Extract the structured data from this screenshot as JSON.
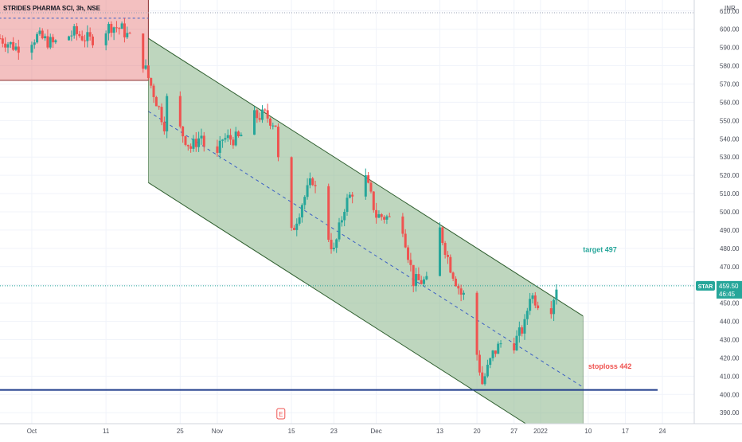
{
  "chart_data": {
    "type": "candlestick",
    "title": "STRIDES PHARMA SCI, 3h, NSE",
    "currency": "INR",
    "ylim": [
      384,
      616
    ],
    "y_ticks": [
      390,
      400,
      410,
      420,
      430,
      440,
      450,
      460,
      470,
      480,
      490,
      500,
      510,
      520,
      530,
      540,
      550,
      560,
      570,
      580,
      590,
      600,
      610
    ],
    "x_ticks": [
      {
        "label": "Oct",
        "x": "2021-09-27"
      },
      {
        "label": "11",
        "x": "2021-10-11"
      },
      {
        "label": "25",
        "x": "2021-10-25"
      },
      {
        "label": "Nov",
        "x": "2021-11-01"
      },
      {
        "label": "15",
        "x": "2021-11-15"
      },
      {
        "label": "23",
        "x": "2021-11-23"
      },
      {
        "label": "Dec",
        "x": "2021-12-01"
      },
      {
        "label": "13",
        "x": "2021-12-13"
      },
      {
        "label": "20",
        "x": "2021-12-20"
      },
      {
        "label": "27",
        "x": "2021-12-27"
      },
      {
        "label": "2022",
        "x": "2022-01-01"
      },
      {
        "label": "10",
        "x": "2022-01-10"
      },
      {
        "label": "17",
        "x": "2022-01-17"
      },
      {
        "label": "24",
        "x": "2022-01-24"
      }
    ],
    "x_start": "2021-09-21",
    "x_end": "2022-01-30",
    "last_price": {
      "symbol": "STAR",
      "value": "459.50",
      "countdown": "46:45",
      "price": 459.5
    },
    "price_path": [
      [
        "2021-09-21",
        595
      ],
      [
        "2021-09-24",
        590
      ],
      [
        "2021-09-28",
        596
      ],
      [
        "2021-10-01",
        592
      ],
      [
        "2021-10-05",
        598
      ],
      [
        "2021-10-08",
        594
      ],
      [
        "2021-10-12",
        602
      ],
      [
        "2021-10-14",
        600
      ],
      [
        "2021-10-17",
        590
      ],
      [
        "2021-10-20",
        565
      ],
      [
        "2021-10-22",
        548
      ],
      [
        "2021-10-23",
        575
      ],
      [
        "2021-10-25",
        545
      ],
      [
        "2021-10-27",
        535
      ],
      [
        "2021-10-29",
        542
      ],
      [
        "2021-10-31",
        520
      ],
      [
        "2021-11-02",
        540
      ],
      [
        "2021-11-05",
        540
      ],
      [
        "2021-11-08",
        552
      ],
      [
        "2021-11-10",
        553
      ],
      [
        "2021-11-12",
        548
      ],
      [
        "2021-11-13",
        508
      ],
      [
        "2021-11-15",
        488
      ],
      [
        "2021-11-17",
        505
      ],
      [
        "2021-11-19",
        518
      ],
      [
        "2021-11-21",
        495
      ],
      [
        "2021-11-23",
        478
      ],
      [
        "2021-11-25",
        503
      ],
      [
        "2021-11-27",
        514
      ],
      [
        "2021-11-29",
        518
      ],
      [
        "2021-12-01",
        498
      ],
      [
        "2021-12-03",
        497
      ],
      [
        "2021-12-06",
        492
      ],
      [
        "2021-12-08",
        462
      ],
      [
        "2021-12-10",
        462
      ],
      [
        "2021-12-12",
        459
      ],
      [
        "2021-12-13",
        490
      ],
      [
        "2021-12-15",
        470
      ],
      [
        "2021-12-17",
        455
      ],
      [
        "2021-12-19",
        452
      ],
      [
        "2021-12-20",
        422
      ],
      [
        "2021-12-21",
        406
      ],
      [
        "2021-12-23",
        422
      ],
      [
        "2021-12-25",
        430
      ],
      [
        "2021-12-27",
        428
      ],
      [
        "2021-12-29",
        438
      ],
      [
        "2021-12-30",
        455
      ],
      [
        "2022-01-01",
        449
      ],
      [
        "2022-01-03",
        448
      ],
      [
        "2022-01-04",
        459.5
      ]
    ],
    "annotations": [
      {
        "text": "target 497",
        "x": "2022-01-09",
        "y": 478,
        "color": "#26a69a"
      },
      {
        "text": "stoploss 442",
        "x": "2022-01-10",
        "y": 414,
        "color": "#ef5350"
      }
    ],
    "shapes": {
      "consolidation_box": {
        "x1": "2021-09-19",
        "x2": "2021-10-19",
        "y1": 572,
        "y2": 625,
        "fill": "rgba(229,115,115,0.45)",
        "stroke": "#8b2e2e"
      },
      "consolidation_midline": {
        "x1": "2021-09-19",
        "x2": "2021-10-19",
        "y": 606
      },
      "channel_upper": {
        "x1": "2021-10-19",
        "y1": 595,
        "x2": "2022-01-09",
        "y2": 443
      },
      "channel_lower": {
        "x1": "2021-10-19",
        "y1": 516,
        "x2": "2022-01-09",
        "y2": 364
      },
      "channel_mid": {
        "x1": "2021-10-19",
        "y1": 555,
        "x2": "2022-01-09",
        "y2": 404
      },
      "channel_fill": "rgba(137,181,137,0.55)",
      "channel_stroke": "#2e5e2e",
      "support_line": {
        "y": 402.5,
        "color": "#1e3a8a"
      },
      "resistance_dotted": {
        "y": 609
      },
      "last_price_dotted": {
        "y": 459.5
      }
    },
    "earnings_marker": {
      "label": "E",
      "x": "2021-11-13"
    },
    "colors": {
      "up": "#26a69a",
      "down": "#ef5350",
      "axis_text": "#4a4e59",
      "grid": "#f0f3fa"
    }
  }
}
